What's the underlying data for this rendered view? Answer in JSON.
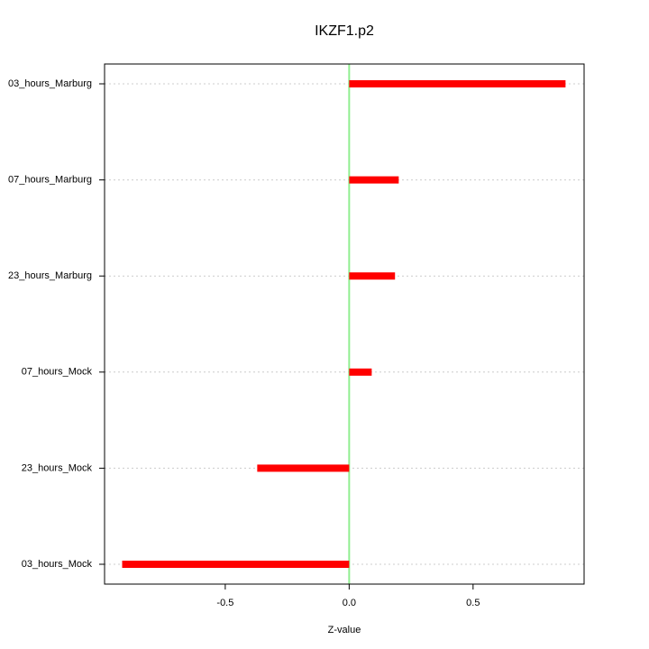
{
  "chart_data": {
    "type": "hbar",
    "title": "IKZF1.p2",
    "x_label": "Z-value",
    "categories": [
      "03_hours_Marburg",
      "07_hours_Marburg",
      "23_hours_Marburg",
      "07_hours_Mock",
      "23_hours_Mock",
      "03_hours_Mock"
    ],
    "values": [
      0.873,
      0.2,
      0.185,
      0.091,
      -0.371,
      -0.916
    ],
    "color": "#ff0000",
    "zero_line_color": "#90ee90",
    "xlim": [
      -0.987,
      0.948
    ],
    "xticks": [
      -0.5,
      {
        "value": 0,
        "label": "0.0"
      },
      0.5
    ],
    "grid": true
  }
}
